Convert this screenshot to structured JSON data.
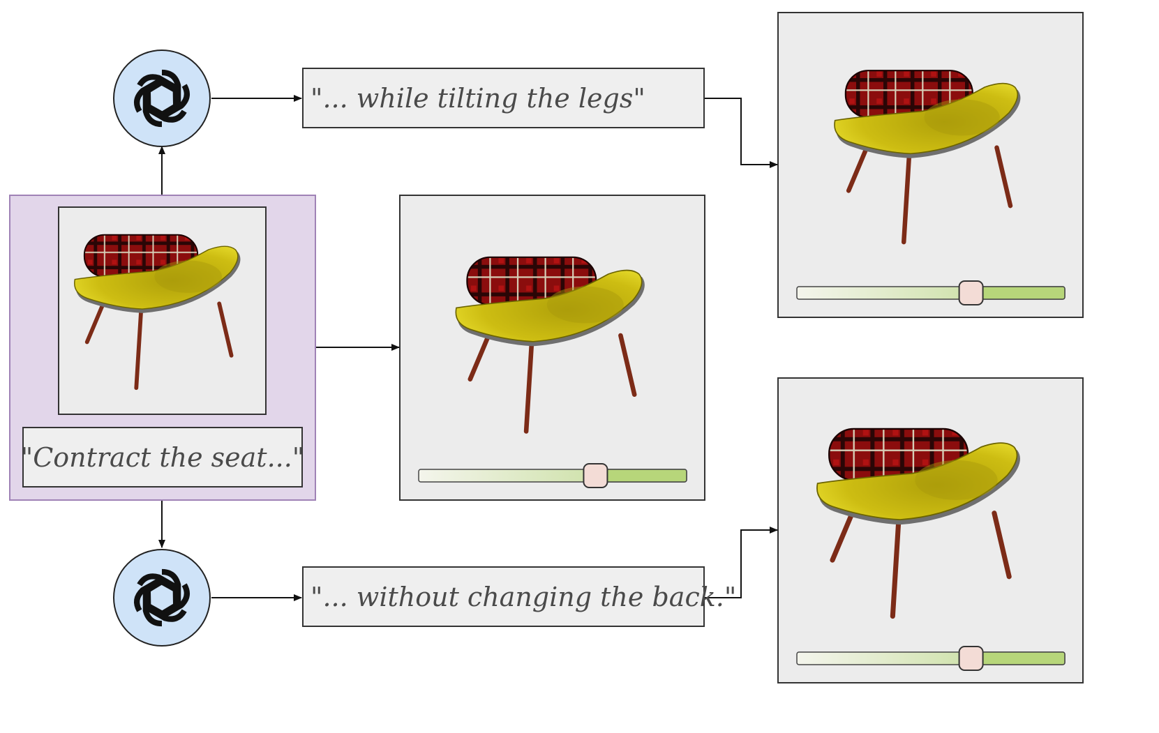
{
  "input": {
    "prompt": "\"Contract the seat...\""
  },
  "prompts": {
    "top": "\"... while tilting the legs\"",
    "bottom": "\"... without changing the back.\""
  },
  "icons": {
    "llm": "openai-logo-icon",
    "output": "chair-icon"
  },
  "colors": {
    "input_panel_bg": "#e2d6ea",
    "input_panel_border": "#9f82b6",
    "llm_circle": "#cfe3f8",
    "seat": "#c8b80c",
    "plaid": "#8b0d0d",
    "legs": "#7c2b17",
    "slider_fill": "#b7d67a",
    "slider_handle": "#f3dcd6"
  },
  "sliders": {
    "middle": 0.66,
    "top_right": 0.65,
    "bottom_right": 0.65
  }
}
